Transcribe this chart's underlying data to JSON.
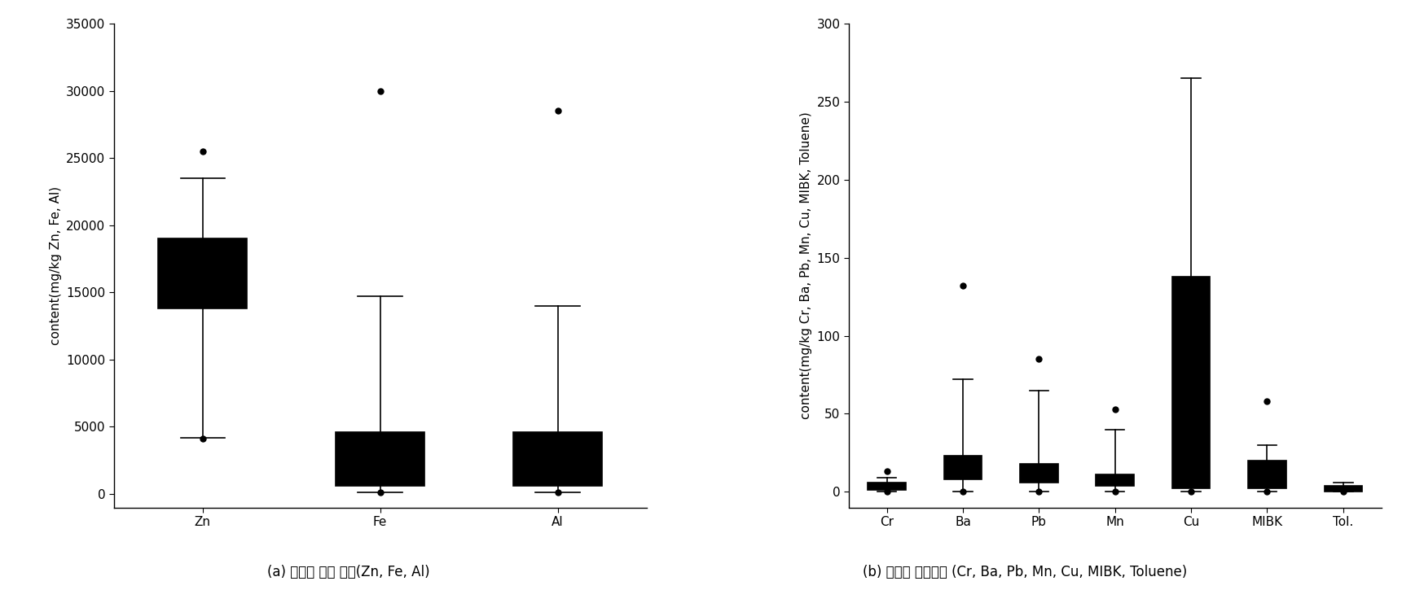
{
  "left": {
    "title": "(a) 고농도 검출 항목(Zn, Fe, Al)",
    "ylabel": "content(mg/kg Zn, Fe, Al)",
    "ylim": [
      -1000,
      35000
    ],
    "yticks": [
      0,
      5000,
      10000,
      15000,
      20000,
      25000,
      30000,
      35000
    ],
    "color": "#3aada0",
    "edgecolor": "#000000",
    "mediancolor": "#000000",
    "categories": [
      "Zn",
      "Fe",
      "Al"
    ],
    "boxes": [
      {
        "q1": 13800,
        "median": 17000,
        "q3": 19000,
        "whislo": 4200,
        "whishi": 23500,
        "fliers_hi": [
          25500
        ],
        "fliers_lo": [
          4100
        ]
      },
      {
        "q1": 600,
        "median": 800,
        "q3": 4600,
        "whislo": 100,
        "whishi": 14700,
        "fliers_hi": [
          30000
        ],
        "fliers_lo": [
          150
        ]
      },
      {
        "q1": 600,
        "median": 800,
        "q3": 4600,
        "whislo": 100,
        "whishi": 14000,
        "fliers_hi": [
          28500
        ],
        "fliers_lo": [
          150
        ]
      }
    ]
  },
  "right": {
    "title": "(b) 저농도 검출항목 (Cr, Ba, Pb, Mn, Cu, MIBK, Toluene)",
    "ylabel": "content(mg/kg Cr, Ba, Pb, Mn, Cu, MIBK, Toluene)",
    "ylim": [
      -10,
      300
    ],
    "yticks": [
      0,
      50,
      100,
      150,
      200,
      250,
      300
    ],
    "color": "#9b1c1c",
    "edgecolor": "#000000",
    "mediancolor": "#000000",
    "categories": [
      "Cr",
      "Ba",
      "Pb",
      "Mn",
      "Cu",
      "MIBK",
      "Tol."
    ],
    "boxes": [
      {
        "q1": 1,
        "median": 3,
        "q3": 6,
        "whislo": 0,
        "whishi": 9,
        "fliers_hi": [
          13
        ],
        "fliers_lo": [
          0
        ]
      },
      {
        "q1": 8,
        "median": 14,
        "q3": 23,
        "whislo": 0,
        "whishi": 72,
        "fliers_hi": [
          132
        ],
        "fliers_lo": [
          0
        ]
      },
      {
        "q1": 6,
        "median": 13,
        "q3": 18,
        "whislo": 0,
        "whishi": 65,
        "fliers_hi": [
          85
        ],
        "fliers_lo": [
          0
        ]
      },
      {
        "q1": 4,
        "median": 8,
        "q3": 11,
        "whislo": 0,
        "whishi": 40,
        "fliers_hi": [
          53
        ],
        "fliers_lo": [
          0
        ]
      },
      {
        "q1": 2,
        "median": 65,
        "q3": 138,
        "whislo": 0,
        "whishi": 265,
        "fliers_hi": [],
        "fliers_lo": [
          0
        ]
      },
      {
        "q1": 2,
        "median": 12,
        "q3": 20,
        "whislo": 0,
        "whishi": 30,
        "fliers_hi": [
          58
        ],
        "fliers_lo": [
          0
        ]
      },
      {
        "q1": 0,
        "median": 2,
        "q3": 4,
        "whislo": 0,
        "whishi": 6,
        "fliers_hi": [],
        "fliers_lo": [
          0
        ]
      }
    ]
  },
  "caption_fontsize": 12,
  "tick_fontsize": 11,
  "label_fontsize": 11
}
